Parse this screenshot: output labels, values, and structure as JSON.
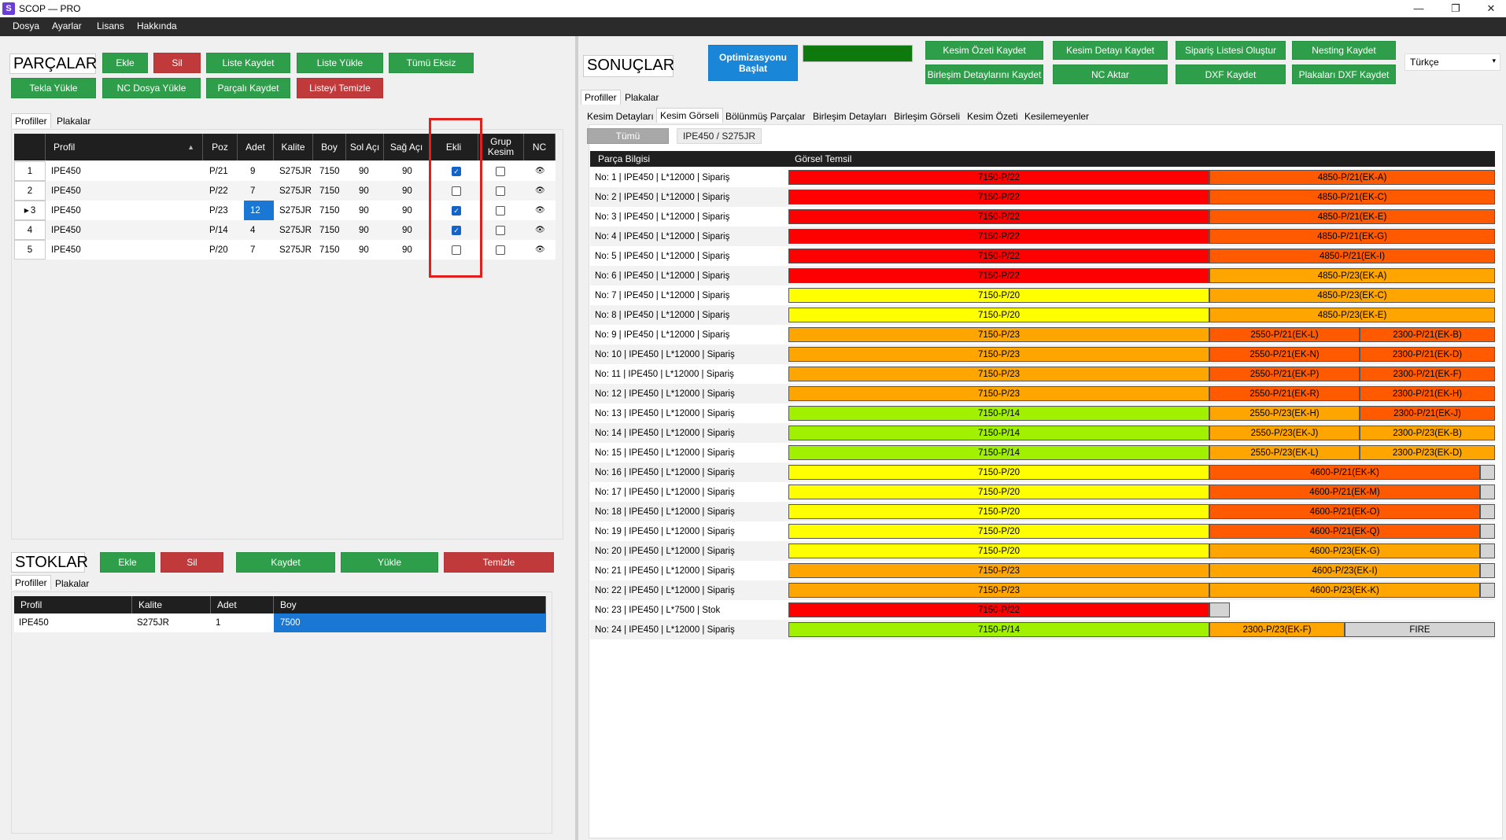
{
  "window": {
    "app_icon": "S",
    "title": "SCOP — PRO",
    "minimize": "—",
    "maximize": "❐",
    "close": "✕"
  },
  "menu": [
    "Dosya",
    "Ayarlar",
    "Lisans",
    "Hakkında"
  ],
  "parts": {
    "heading": "PARÇALAR",
    "buttons_row1": [
      "Ekle",
      "Sil",
      "Liste Kaydet",
      "Liste Yükle",
      "Tümü Eksiz"
    ],
    "buttons_row2": [
      "Tekla Yükle",
      "NC Dosya Yükle",
      "Parçalı Kaydet",
      "Listeyi Temizle"
    ],
    "tabs": [
      "Profiller",
      "Plakalar"
    ],
    "columns": [
      "Profil",
      "Poz",
      "Adet",
      "Kalite",
      "Boy",
      "Sol Açı",
      "Sağ Açı",
      "Ekli",
      "Grup Kesim",
      "NC"
    ],
    "rows": [
      {
        "num": "1",
        "profil": "IPE450",
        "poz": "P/21",
        "adet": "9",
        "kalite": "S275JR",
        "boy": "7150",
        "sol": "90",
        "sag": "90",
        "ekli": true,
        "grup": false
      },
      {
        "num": "2",
        "profil": "IPE450",
        "poz": "P/22",
        "adet": "7",
        "kalite": "S275JR",
        "boy": "7150",
        "sol": "90",
        "sag": "90",
        "ekli": false,
        "grup": false
      },
      {
        "num": "3",
        "profil": "IPE450",
        "poz": "P/23",
        "adet": "12",
        "kalite": "S275JR",
        "boy": "7150",
        "sol": "90",
        "sag": "90",
        "ekli": true,
        "grup": false
      },
      {
        "num": "4",
        "profil": "IPE450",
        "poz": "P/14",
        "adet": "4",
        "kalite": "S275JR",
        "boy": "7150",
        "sol": "90",
        "sag": "90",
        "ekli": true,
        "grup": false
      },
      {
        "num": "5",
        "profil": "IPE450",
        "poz": "P/20",
        "adet": "7",
        "kalite": "S275JR",
        "boy": "7150",
        "sol": "90",
        "sag": "90",
        "ekli": false,
        "grup": false
      }
    ]
  },
  "stocks": {
    "heading": "STOKLAR",
    "buttons": [
      "Ekle",
      "Sil",
      "Kaydet",
      "Yükle",
      "Temizle"
    ],
    "tabs": [
      "Profiller",
      "Plakalar"
    ],
    "columns": [
      "Profil",
      "Kalite",
      "Adet",
      "Boy"
    ],
    "rows": [
      {
        "profil": "IPE450",
        "kalite": "S275JR",
        "adet": "1",
        "boy": "7500"
      }
    ]
  },
  "results": {
    "heading": "SONUÇLAR",
    "optimize_button": "Optimizasyonu Başlat",
    "progress": 1.0,
    "buttons": [
      "Kesim Özeti Kaydet",
      "Kesim Detayı Kaydet",
      "Sipariş Listesi Oluştur",
      "Nesting Kaydet",
      "Birleşim Detaylarını Kaydet",
      "NC Aktar",
      "DXF Kaydet",
      "Plakaları DXF Kaydet"
    ],
    "language": "Türkçe",
    "tabs": [
      "Profiller",
      "Plakalar"
    ],
    "subtabs": [
      "Kesim Detayları",
      "Kesim Görseli",
      "Bölünmüş Parçalar",
      "Birleşim Detayları",
      "Birleşim Görseli",
      "Kesim Özeti",
      "Kesilemeyenler"
    ],
    "filters": [
      "Tümü",
      "IPE450 / S275JR"
    ],
    "columns": [
      "Parça Bilgisi",
      "Görsel Temsil"
    ],
    "colors": {
      "red": "#ff0000",
      "orangered": "#ff5a00",
      "orange": "#ffa500",
      "yellow": "#ffff00",
      "green": "#a0f000",
      "gray": "#d4d4d4"
    },
    "bar_length": 12000,
    "bars": [
      {
        "label": "No: 1 | IPE450 | L*12000 | Sipariş",
        "segments": [
          {
            "t": "7150-P/22",
            "len": 7150,
            "c": "red"
          },
          {
            "t": "4850-P/21(EK-A)",
            "len": 4850,
            "c": "orangered"
          }
        ]
      },
      {
        "label": "No: 2 | IPE450 | L*12000 | Sipariş",
        "segments": [
          {
            "t": "7150-P/22",
            "len": 7150,
            "c": "red"
          },
          {
            "t": "4850-P/21(EK-C)",
            "len": 4850,
            "c": "orangered"
          }
        ]
      },
      {
        "label": "No: 3 | IPE450 | L*12000 | Sipariş",
        "segments": [
          {
            "t": "7150-P/22",
            "len": 7150,
            "c": "red"
          },
          {
            "t": "4850-P/21(EK-E)",
            "len": 4850,
            "c": "orangered"
          }
        ]
      },
      {
        "label": "No: 4 | IPE450 | L*12000 | Sipariş",
        "segments": [
          {
            "t": "7150-P/22",
            "len": 7150,
            "c": "red"
          },
          {
            "t": "4850-P/21(EK-G)",
            "len": 4850,
            "c": "orangered"
          }
        ]
      },
      {
        "label": "No: 5 | IPE450 | L*12000 | Sipariş",
        "segments": [
          {
            "t": "7150-P/22",
            "len": 7150,
            "c": "red"
          },
          {
            "t": "4850-P/21(EK-I)",
            "len": 4850,
            "c": "orangered"
          }
        ]
      },
      {
        "label": "No: 6 | IPE450 | L*12000 | Sipariş",
        "segments": [
          {
            "t": "7150-P/22",
            "len": 7150,
            "c": "red"
          },
          {
            "t": "4850-P/23(EK-A)",
            "len": 4850,
            "c": "orange"
          }
        ]
      },
      {
        "label": "No: 7 | IPE450 | L*12000 | Sipariş",
        "segments": [
          {
            "t": "7150-P/20",
            "len": 7150,
            "c": "yellow"
          },
          {
            "t": "4850-P/23(EK-C)",
            "len": 4850,
            "c": "orange"
          }
        ]
      },
      {
        "label": "No: 8 | IPE450 | L*12000 | Sipariş",
        "segments": [
          {
            "t": "7150-P/20",
            "len": 7150,
            "c": "yellow"
          },
          {
            "t": "4850-P/23(EK-E)",
            "len": 4850,
            "c": "orange"
          }
        ]
      },
      {
        "label": "No: 9 | IPE450 | L*12000 | Sipariş",
        "segments": [
          {
            "t": "7150-P/23",
            "len": 7150,
            "c": "orange"
          },
          {
            "t": "2550-P/21(EK-L)",
            "len": 2550,
            "c": "orangered"
          },
          {
            "t": "2300-P/21(EK-B)",
            "len": 2300,
            "c": "orangered"
          }
        ]
      },
      {
        "label": "No: 10 | IPE450 | L*12000 | Sipariş",
        "segments": [
          {
            "t": "7150-P/23",
            "len": 7150,
            "c": "orange"
          },
          {
            "t": "2550-P/21(EK-N)",
            "len": 2550,
            "c": "orangered"
          },
          {
            "t": "2300-P/21(EK-D)",
            "len": 2300,
            "c": "orangered"
          }
        ]
      },
      {
        "label": "No: 11 | IPE450 | L*12000 | Sipariş",
        "segments": [
          {
            "t": "7150-P/23",
            "len": 7150,
            "c": "orange"
          },
          {
            "t": "2550-P/21(EK-P)",
            "len": 2550,
            "c": "orangered"
          },
          {
            "t": "2300-P/21(EK-F)",
            "len": 2300,
            "c": "orangered"
          }
        ]
      },
      {
        "label": "No: 12 | IPE450 | L*12000 | Sipariş",
        "segments": [
          {
            "t": "7150-P/23",
            "len": 7150,
            "c": "orange"
          },
          {
            "t": "2550-P/21(EK-R)",
            "len": 2550,
            "c": "orangered"
          },
          {
            "t": "2300-P/21(EK-H)",
            "len": 2300,
            "c": "orangered"
          }
        ]
      },
      {
        "label": "No: 13 | IPE450 | L*12000 | Sipariş",
        "segments": [
          {
            "t": "7150-P/14",
            "len": 7150,
            "c": "green"
          },
          {
            "t": "2550-P/23(EK-H)",
            "len": 2550,
            "c": "orange"
          },
          {
            "t": "2300-P/21(EK-J)",
            "len": 2300,
            "c": "orangered"
          }
        ]
      },
      {
        "label": "No: 14 | IPE450 | L*12000 | Sipariş",
        "segments": [
          {
            "t": "7150-P/14",
            "len": 7150,
            "c": "green"
          },
          {
            "t": "2550-P/23(EK-J)",
            "len": 2550,
            "c": "orange"
          },
          {
            "t": "2300-P/23(EK-B)",
            "len": 2300,
            "c": "orange"
          }
        ]
      },
      {
        "label": "No: 15 | IPE450 | L*12000 | Sipariş",
        "segments": [
          {
            "t": "7150-P/14",
            "len": 7150,
            "c": "green"
          },
          {
            "t": "2550-P/23(EK-L)",
            "len": 2550,
            "c": "orange"
          },
          {
            "t": "2300-P/23(EK-D)",
            "len": 2300,
            "c": "orange"
          }
        ]
      },
      {
        "label": "No: 16 | IPE450 | L*12000 | Sipariş",
        "segments": [
          {
            "t": "7150-P/20",
            "len": 7150,
            "c": "yellow"
          },
          {
            "t": "4600-P/21(EK-K)",
            "len": 4600,
            "c": "orangered"
          },
          {
            "t": "",
            "len": 250,
            "c": "gray"
          }
        ]
      },
      {
        "label": "No: 17 | IPE450 | L*12000 | Sipariş",
        "segments": [
          {
            "t": "7150-P/20",
            "len": 7150,
            "c": "yellow"
          },
          {
            "t": "4600-P/21(EK-M)",
            "len": 4600,
            "c": "orangered"
          },
          {
            "t": "",
            "len": 250,
            "c": "gray"
          }
        ]
      },
      {
        "label": "No: 18 | IPE450 | L*12000 | Sipariş",
        "segments": [
          {
            "t": "7150-P/20",
            "len": 7150,
            "c": "yellow"
          },
          {
            "t": "4600-P/21(EK-O)",
            "len": 4600,
            "c": "orangered"
          },
          {
            "t": "",
            "len": 250,
            "c": "gray"
          }
        ]
      },
      {
        "label": "No: 19 | IPE450 | L*12000 | Sipariş",
        "segments": [
          {
            "t": "7150-P/20",
            "len": 7150,
            "c": "yellow"
          },
          {
            "t": "4600-P/21(EK-Q)",
            "len": 4600,
            "c": "orangered"
          },
          {
            "t": "",
            "len": 250,
            "c": "gray"
          }
        ]
      },
      {
        "label": "No: 20 | IPE450 | L*12000 | Sipariş",
        "segments": [
          {
            "t": "7150-P/20",
            "len": 7150,
            "c": "yellow"
          },
          {
            "t": "4600-P/23(EK-G)",
            "len": 4600,
            "c": "orange"
          },
          {
            "t": "",
            "len": 250,
            "c": "gray"
          }
        ]
      },
      {
        "label": "No: 21 | IPE450 | L*12000 | Sipariş",
        "segments": [
          {
            "t": "7150-P/23",
            "len": 7150,
            "c": "orange"
          },
          {
            "t": "4600-P/23(EK-I)",
            "len": 4600,
            "c": "orange"
          },
          {
            "t": "",
            "len": 250,
            "c": "gray"
          }
        ]
      },
      {
        "label": "No: 22 | IPE450 | L*12000 | Sipariş",
        "segments": [
          {
            "t": "7150-P/23",
            "len": 7150,
            "c": "orange"
          },
          {
            "t": "4600-P/23(EK-K)",
            "len": 4600,
            "c": "orange"
          },
          {
            "t": "",
            "len": 250,
            "c": "gray"
          }
        ]
      },
      {
        "label": "No: 23 | IPE450 | L*7500 | Stok",
        "segments": [
          {
            "t": "7150-P/22",
            "len": 7150,
            "c": "red"
          },
          {
            "t": "",
            "len": 350,
            "c": "gray"
          }
        ]
      },
      {
        "label": "No: 24 | IPE450 | L*12000 | Sipariş",
        "segments": [
          {
            "t": "7150-P/14",
            "len": 7150,
            "c": "green"
          },
          {
            "t": "2300-P/23(EK-F)",
            "len": 2300,
            "c": "orange"
          },
          {
            "t": "FIRE",
            "len": 2550,
            "c": "gray"
          }
        ]
      }
    ]
  }
}
